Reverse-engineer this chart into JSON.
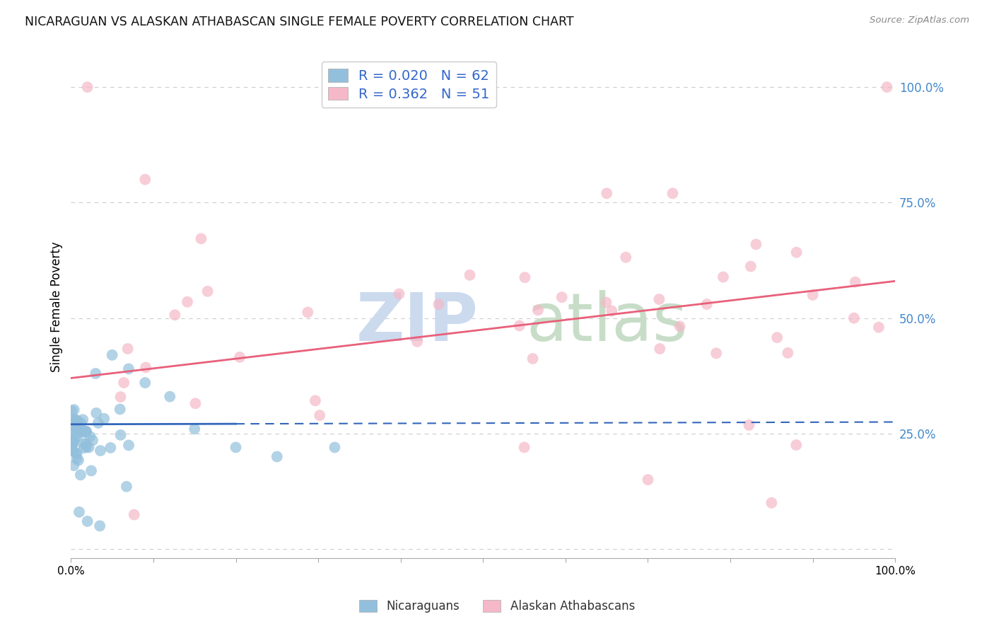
{
  "title": "NICARAGUAN VS ALASKAN ATHABASCAN SINGLE FEMALE POVERTY CORRELATION CHART",
  "source": "Source: ZipAtlas.com",
  "ylabel": "Single Female Poverty",
  "legend_labels": [
    "Nicaraguans",
    "Alaskan Athabascans"
  ],
  "r_values": [
    0.02,
    0.362
  ],
  "n_values": [
    62,
    51
  ],
  "blue_color": "#92bfdc",
  "pink_color": "#f5b8c8",
  "blue_line_color": "#3366bb",
  "pink_line_color": "#e8607a",
  "watermark_zip_color": "#ccdaee",
  "watermark_atlas_color": "#c8ddc8",
  "background_color": "#ffffff",
  "grid_color": "#cccccc",
  "right_axis_color": "#4488cc",
  "xlim": [
    0,
    100
  ],
  "ylim": [
    -2,
    107
  ],
  "yticks": [
    0,
    25,
    50,
    75,
    100
  ],
  "pink_line_x0": 0,
  "pink_line_y0": 37,
  "pink_line_x1": 100,
  "pink_line_y1": 58,
  "blue_line_x0": 0,
  "blue_line_y0": 27,
  "blue_line_x1": 100,
  "blue_line_y1": 27.5
}
